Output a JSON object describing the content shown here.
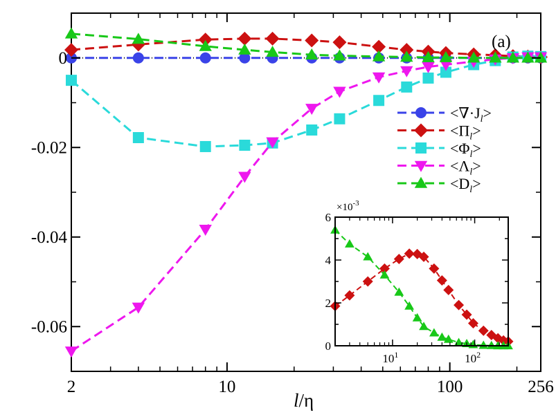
{
  "chart_data": [
    {
      "type": "line",
      "panel_label": "(a)",
      "xscale": "log",
      "xlim": [
        2,
        256
      ],
      "ylim": [
        -0.07,
        0.01
      ],
      "xlabel": "l/η",
      "xlabel_italic_part": "l",
      "xlabel_rest": "/η",
      "xticks": [
        {
          "value": 2,
          "label": "2"
        },
        {
          "value": 10,
          "label": "10"
        },
        {
          "value": 100,
          "label": "100"
        },
        {
          "value": 256,
          "label": "256"
        }
      ],
      "yticks": [
        {
          "value": 0,
          "label": "0"
        },
        {
          "value": -0.02,
          "label": "-0.02"
        },
        {
          "value": -0.04,
          "label": "-0.04"
        },
        {
          "value": -0.06,
          "label": "-0.06"
        }
      ],
      "zero_line": true,
      "legend_position": "right",
      "series": [
        {
          "name": "<∇·Jl>",
          "legend_label": "<∇·J",
          "legend_sub": "l",
          "legend_close": ">",
          "color": "#3a43e8",
          "marker": "circle",
          "x": [
            2,
            4,
            8,
            12,
            16,
            24,
            32,
            48,
            64,
            80,
            96,
            128,
            160,
            192,
            224,
            256
          ],
          "y": [
            0,
            0,
            0,
            0,
            0,
            0,
            0,
            0,
            0,
            0,
            0,
            0,
            0,
            0,
            0,
            0
          ]
        },
        {
          "name": "<Πl>",
          "legend_label": "<Π",
          "legend_sub": "l",
          "legend_close": ">",
          "color": "#cc1111",
          "marker": "diamond",
          "x": [
            2,
            4,
            8,
            12,
            16,
            24,
            32,
            48,
            64,
            80,
            96,
            128,
            160,
            192,
            224,
            256
          ],
          "y": [
            0.0018,
            0.003,
            0.0041,
            0.0043,
            0.0043,
            0.0039,
            0.0035,
            0.0025,
            0.0018,
            0.0014,
            0.0011,
            0.0008,
            0.0006,
            0.0004,
            0.0003,
            0.0002
          ]
        },
        {
          "name": "<Φl>",
          "legend_label": "<Φ",
          "legend_sub": "l",
          "legend_close": ">",
          "color": "#2adada",
          "marker": "square",
          "x": [
            2,
            4,
            8,
            12,
            16,
            24,
            32,
            48,
            64,
            80,
            96,
            128,
            160,
            192,
            224,
            256
          ],
          "y": [
            -0.005,
            -0.0178,
            -0.0198,
            -0.0195,
            -0.019,
            -0.0161,
            -0.0136,
            -0.0095,
            -0.0065,
            -0.0045,
            -0.0032,
            -0.0015,
            -0.0006,
            0.0002,
            0.0004,
            0.0003
          ]
        },
        {
          "name": "<Λl>",
          "legend_label": "<Λ",
          "legend_sub": "l",
          "legend_close": ">",
          "color": "#ee17ee",
          "marker": "triangle-down",
          "x": [
            2,
            4,
            8,
            12,
            16,
            24,
            32,
            48,
            64,
            80,
            96,
            128,
            160,
            192,
            224,
            256
          ],
          "y": [
            -0.0655,
            -0.0557,
            -0.0383,
            -0.0265,
            -0.0188,
            -0.0113,
            -0.0075,
            -0.0043,
            -0.0029,
            -0.002,
            -0.0015,
            -0.0008,
            -0.0003,
            0,
            0.0002,
            0.0002
          ]
        },
        {
          "name": "<Dl>",
          "legend_label": "<D",
          "legend_sub": "l",
          "legend_close": ">",
          "color": "#18c818",
          "marker": "triangle-up",
          "x": [
            2,
            4,
            8,
            12,
            16,
            24,
            32,
            48,
            64,
            80,
            96,
            128,
            160,
            192,
            224,
            256
          ],
          "y": [
            0.0054,
            0.0042,
            0.0026,
            0.0018,
            0.0013,
            0.0007,
            0.0005,
            0.0003,
            0.0002,
            0.0001,
            0.0001,
            0,
            0,
            0,
            0,
            0
          ]
        }
      ]
    },
    {
      "type": "line",
      "panel": "inset",
      "xscale": "log",
      "xlim": [
        2,
        256
      ],
      "ylim": [
        0,
        6
      ],
      "y_multiplier_base": "×10",
      "y_multiplier_exp": "-3",
      "xticks": [
        {
          "value": 10,
          "base": "10",
          "exp": "1"
        },
        {
          "value": 100,
          "base": "10",
          "exp": "2"
        }
      ],
      "yticks": [
        {
          "value": 0,
          "label": "0"
        },
        {
          "value": 2,
          "label": "2"
        },
        {
          "value": 4,
          "label": "4"
        },
        {
          "value": 6,
          "label": "6"
        }
      ],
      "series": [
        {
          "name": "<Πl>",
          "color": "#cc1111",
          "marker": "diamond",
          "x": [
            2,
            3,
            5,
            8,
            12,
            16,
            20,
            24,
            32,
            40,
            48,
            64,
            80,
            96,
            128,
            160,
            192,
            224,
            256
          ],
          "y": [
            1.85,
            2.35,
            3.0,
            3.6,
            4.05,
            4.3,
            4.28,
            4.15,
            3.6,
            3.05,
            2.6,
            1.9,
            1.45,
            1.05,
            0.7,
            0.5,
            0.35,
            0.25,
            0.2
          ]
        },
        {
          "name": "<Dl>",
          "color": "#18c818",
          "marker": "triangle-up",
          "x": [
            2,
            3,
            5,
            8,
            12,
            16,
            20,
            24,
            32,
            40,
            48,
            64,
            80,
            96,
            128,
            160,
            192,
            224,
            256
          ],
          "y": [
            5.4,
            4.75,
            4.15,
            3.3,
            2.5,
            1.85,
            1.3,
            0.9,
            0.6,
            0.4,
            0.3,
            0.15,
            0.1,
            0.05,
            0.02,
            0.01,
            0,
            0,
            0
          ]
        }
      ]
    }
  ]
}
